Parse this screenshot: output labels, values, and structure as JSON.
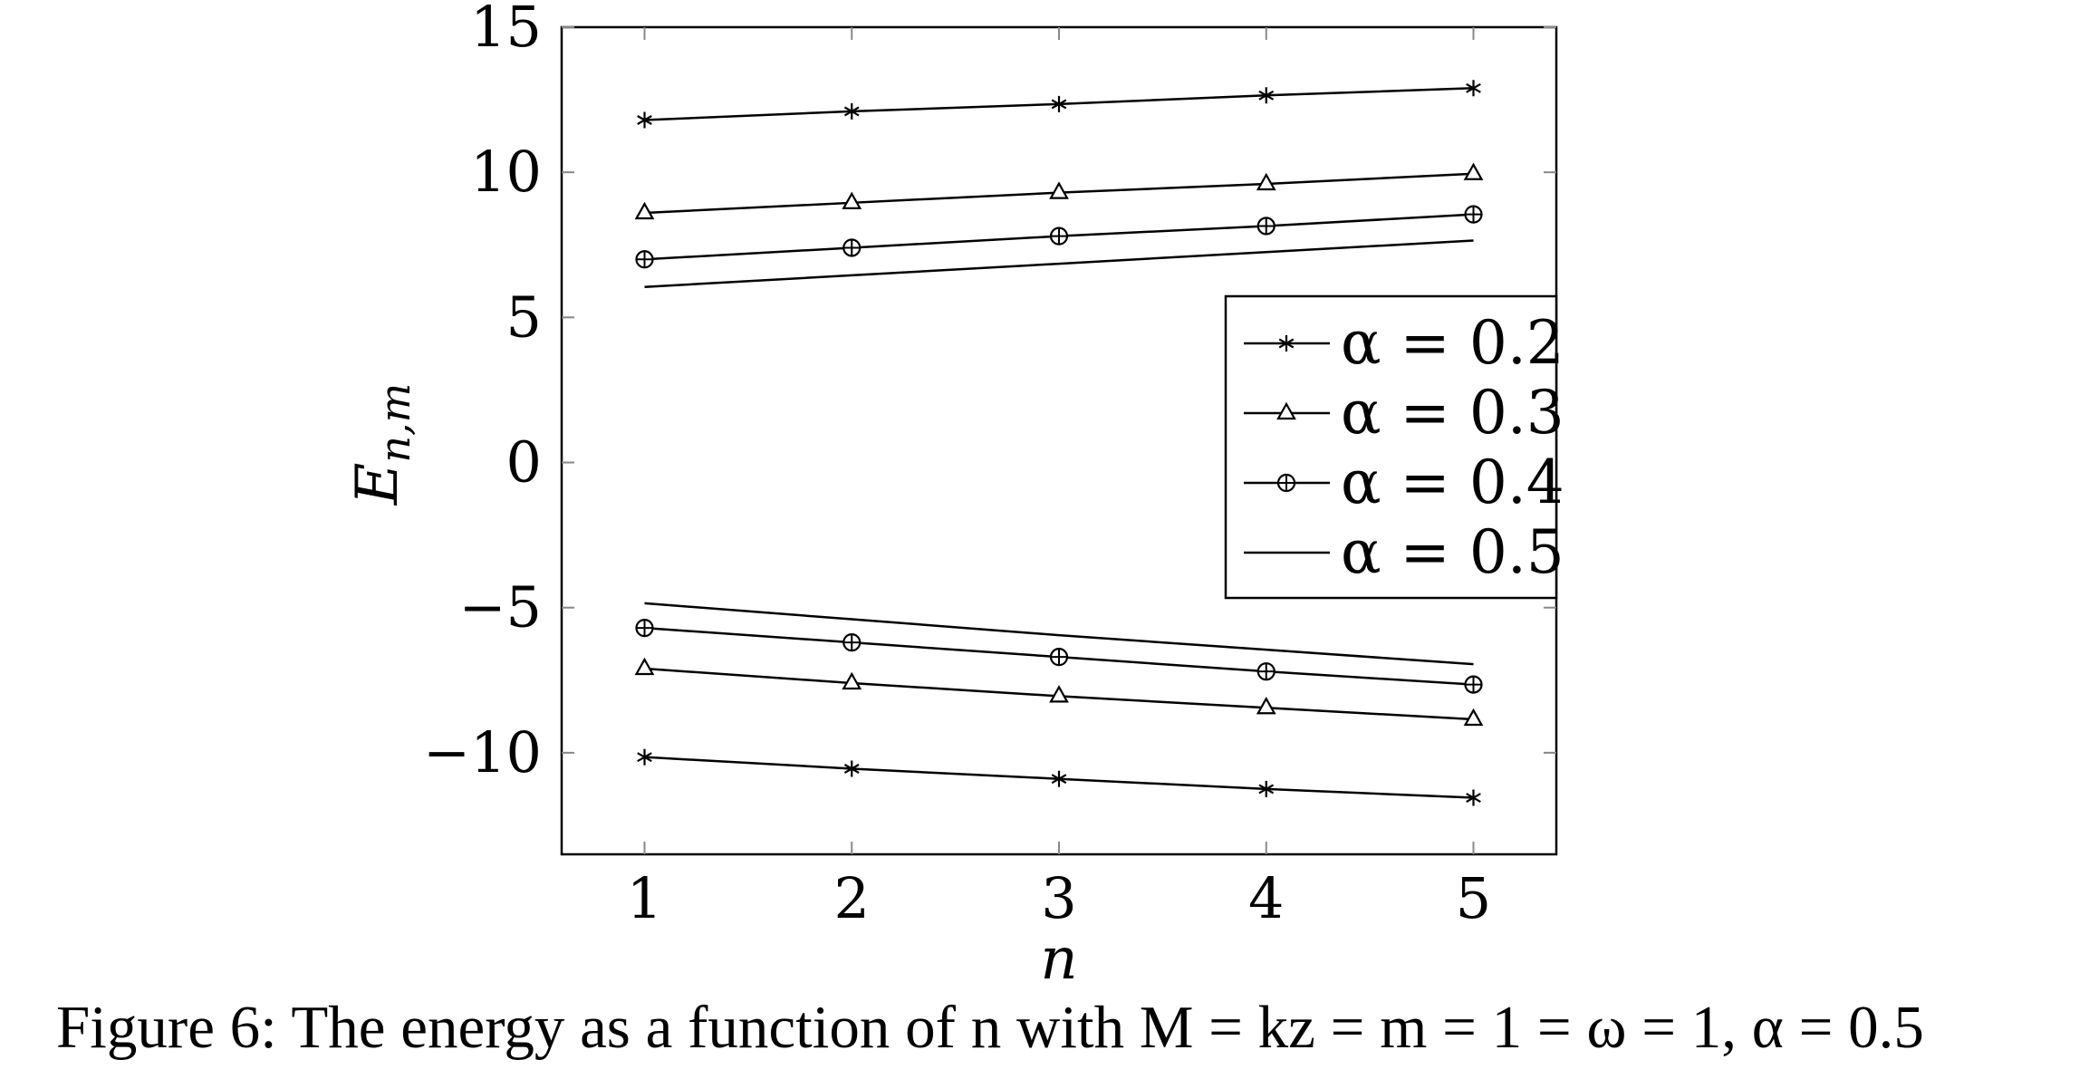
{
  "chart_data": {
    "type": "line",
    "xlabel": "n",
    "ylabel": "E_{n,m}",
    "x": [
      1,
      2,
      3,
      4,
      5
    ],
    "xlim": [
      0.6,
      5.4
    ],
    "ylim": [
      -13.5,
      15
    ],
    "xticks": [
      1,
      2,
      3,
      4,
      5
    ],
    "yticks": [
      -10,
      -5,
      0,
      5,
      10,
      15
    ],
    "ytick_labels": [
      "−10",
      "−5",
      "0",
      "5",
      "10",
      "15"
    ],
    "grid": false,
    "legend_position": "right",
    "series": [
      {
        "name": "α = 0.2",
        "marker": "asterisk",
        "branch": "positive",
        "values": [
          11.8,
          12.1,
          12.35,
          12.65,
          12.9
        ]
      },
      {
        "name": "α = 0.3",
        "marker": "triangle",
        "branch": "positive",
        "values": [
          8.6,
          8.95,
          9.3,
          9.6,
          9.95
        ]
      },
      {
        "name": "α = 0.4",
        "marker": "oplus",
        "branch": "positive",
        "values": [
          7.0,
          7.4,
          7.8,
          8.15,
          8.55
        ]
      },
      {
        "name": "α = 0.5",
        "marker": "none",
        "branch": "positive",
        "values": [
          6.05,
          6.45,
          6.85,
          7.25,
          7.65
        ]
      },
      {
        "name": "α = 0.2",
        "marker": "asterisk",
        "branch": "negative",
        "values": [
          -10.15,
          -10.55,
          -10.9,
          -11.25,
          -11.55
        ]
      },
      {
        "name": "α = 0.3",
        "marker": "triangle",
        "branch": "negative",
        "values": [
          -7.1,
          -7.6,
          -8.05,
          -8.45,
          -8.85
        ]
      },
      {
        "name": "α = 0.4",
        "marker": "oplus",
        "branch": "negative",
        "values": [
          -5.7,
          -6.2,
          -6.7,
          -7.2,
          -7.65
        ]
      },
      {
        "name": "α = 0.5",
        "marker": "none",
        "branch": "negative",
        "values": [
          -4.85,
          -5.4,
          -5.95,
          -6.45,
          -6.95
        ]
      }
    ],
    "legend": [
      {
        "label": "α = 0.2",
        "marker": "asterisk"
      },
      {
        "label": "α = 0.3",
        "marker": "triangle"
      },
      {
        "label": "α = 0.4",
        "marker": "oplus"
      },
      {
        "label": "α = 0.5",
        "marker": "none"
      }
    ]
  },
  "caption": "Figure 6: The energy as a function of n with M = kz = m = 1 = ω = 1, α = 0.5"
}
